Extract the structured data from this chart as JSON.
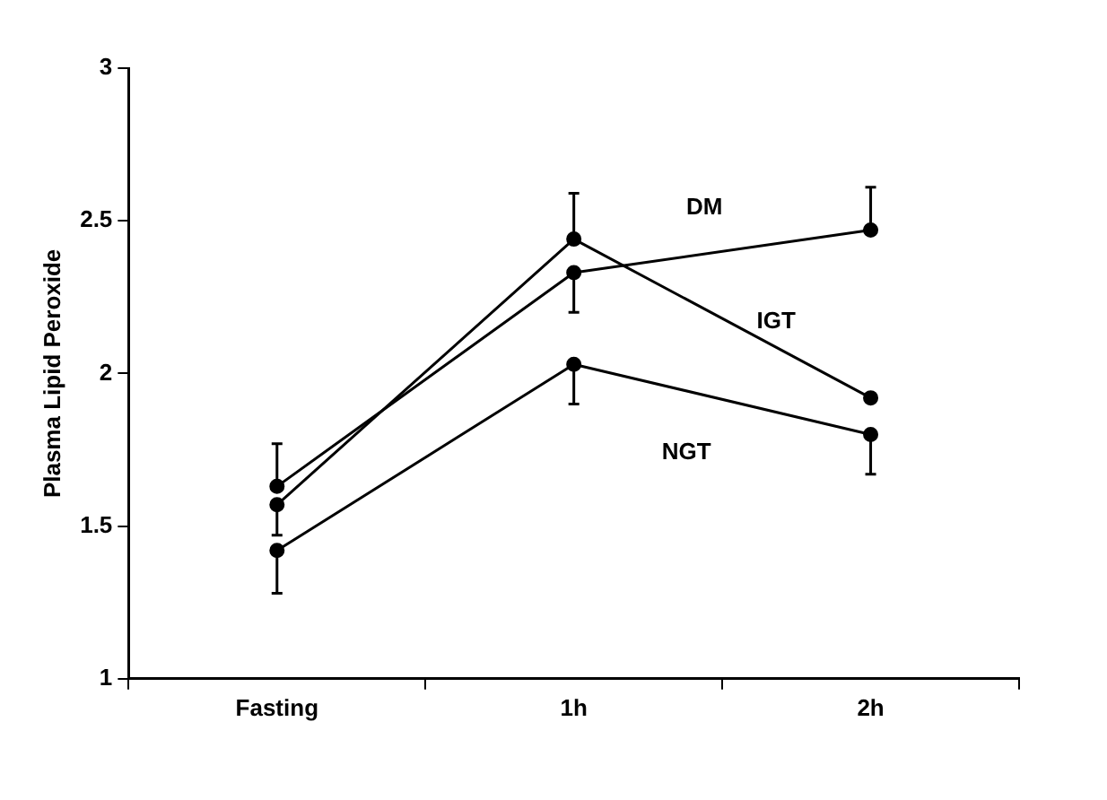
{
  "chart_data": {
    "type": "line",
    "ylabel": "Plasma Lipid Peroxide",
    "categories": [
      "Fasting",
      "1h",
      "2h"
    ],
    "ylim": [
      1,
      3
    ],
    "yticks": [
      1,
      1.5,
      2,
      2.5,
      3
    ],
    "marker": "circle",
    "line_style": "solid",
    "legend": false,
    "series": [
      {
        "name": "DM",
        "color": "#000000",
        "values": [
          1.63,
          2.33,
          2.47
        ],
        "errors": [
          [
            1.63,
            1.77
          ],
          [
            2.2,
            2.33
          ],
          [
            2.47,
            2.61
          ]
        ]
      },
      {
        "name": "IGT",
        "color": "#000000",
        "values": [
          1.57,
          2.44,
          1.92
        ],
        "errors": [
          [
            1.47,
            1.57
          ],
          [
            2.44,
            2.59
          ],
          null
        ]
      },
      {
        "name": "NGT",
        "color": "#000000",
        "values": [
          1.42,
          2.03,
          1.8
        ],
        "errors": [
          [
            1.28,
            1.42
          ],
          [
            1.9,
            2.03
          ],
          [
            1.67,
            1.8
          ]
        ]
      }
    ]
  }
}
